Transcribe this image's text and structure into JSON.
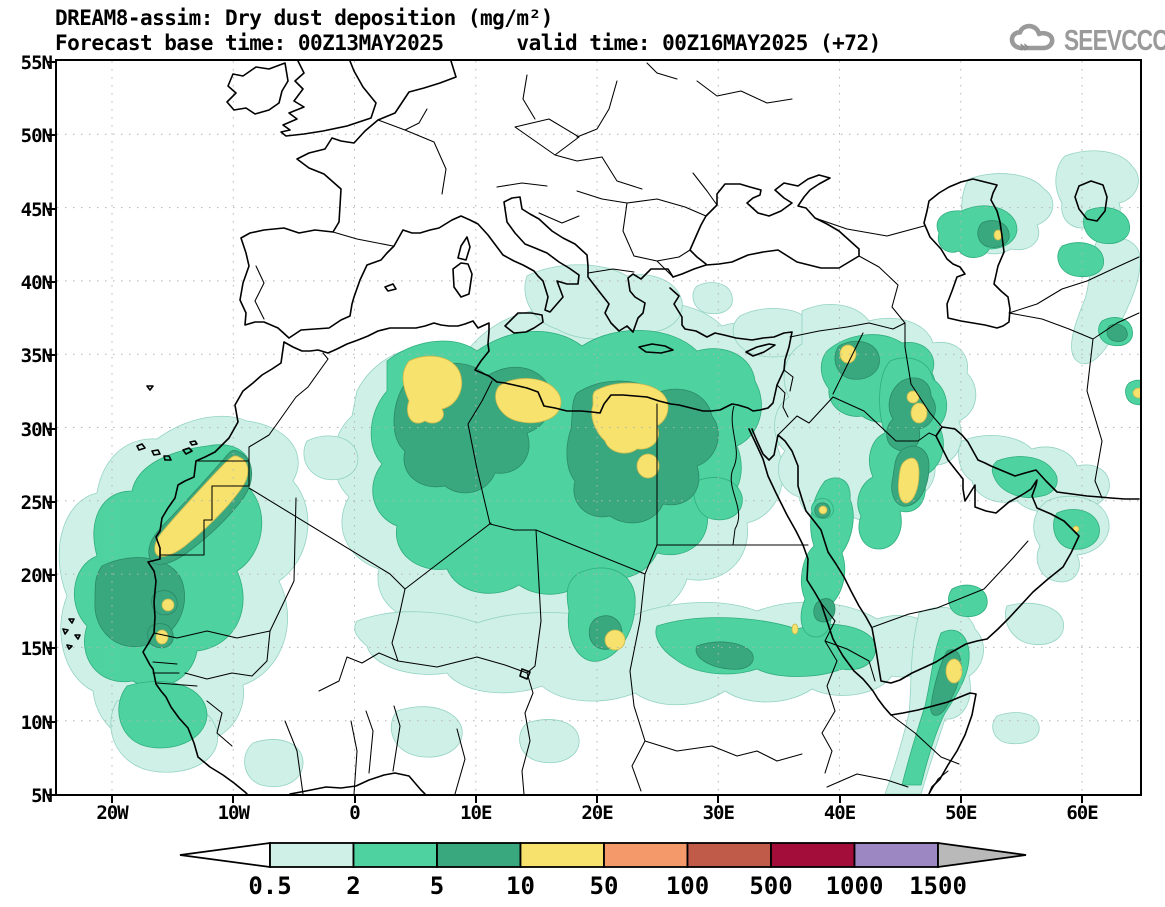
{
  "header": {
    "title": "DREAM8-assim: Dry dust deposition (mg/m²)",
    "subtitle": "Forecast base time: 00Z13MAY2025      valid time: 00Z16MAY2025 (+72)"
  },
  "logo": {
    "text": "SEEVCCC",
    "color": "#9a9a9a",
    "icon": "cloud-icon"
  },
  "map": {
    "lat_ticks": [
      "55N",
      "50N",
      "45N",
      "40N",
      "35N",
      "30N",
      "25N",
      "20N",
      "15N",
      "10N",
      "5N"
    ],
    "lon_ticks": [
      "20W",
      "10W",
      "0",
      "10E",
      "20E",
      "30E",
      "40E",
      "50E",
      "60E"
    ]
  },
  "colorbar": {
    "levels": [
      "0.5",
      "2",
      "5",
      "10",
      "50",
      "100",
      "500",
      "1000",
      "1500"
    ],
    "segment_colors": [
      "#cff0e6",
      "#4ed2a0",
      "#3aa87e",
      "#f7e26e",
      "#f4996a",
      "#c05a49",
      "#a30d39",
      "#9d87c2"
    ],
    "under_arrow_color": "#ffffff",
    "over_arrow_color": "#b9b9b9"
  },
  "palette": {
    "dust_level_fills": {
      "0.5-2": "#cff0e6",
      "2-5": "#4ed2a0",
      "5-10": "#3aa87e",
      "10-50": "#f7e26e",
      "50-100": "#f4996a",
      "100-500": "#c05a49",
      "500-1000": "#a30d39",
      "1000-1500": "#9d87c2",
      "over-1500": "#b9b9b9"
    }
  },
  "chart_data": {
    "type": "filled_contour_map",
    "title": "DREAM8-assim: Dry dust deposition (mg/m²)",
    "units": "mg/m²",
    "contour_levels": [
      0.5,
      2,
      5,
      10,
      50,
      100,
      500,
      1000,
      1500
    ],
    "lat_axis_ticks": [
      "55N",
      "50N",
      "45N",
      "40N",
      "35N",
      "30N",
      "25N",
      "20N",
      "15N",
      "10N",
      "5N"
    ],
    "lon_axis_ticks": [
      "20W",
      "10W",
      "0",
      "10E",
      "20E",
      "30E",
      "40E",
      "50E",
      "60E"
    ],
    "grid": "dotted",
    "legend_position": "bottom",
    "max_shown_band": "10-50",
    "areas_in_10_50_band": [
      "Western Sahara coastal strip",
      "NE Algeria / Tunisia",
      "N Libya coast (Gulf of Sirte)",
      "NW Egypt / E Libya",
      "NE Syria (small)",
      "central and SE Iraq plume",
      "N Chad (small)",
      "Caucasus (small spot)",
      "NE Iran (small spot)",
      "SW Saudi / Asir (small spot)",
      "Somalia coast (small)"
    ]
  }
}
